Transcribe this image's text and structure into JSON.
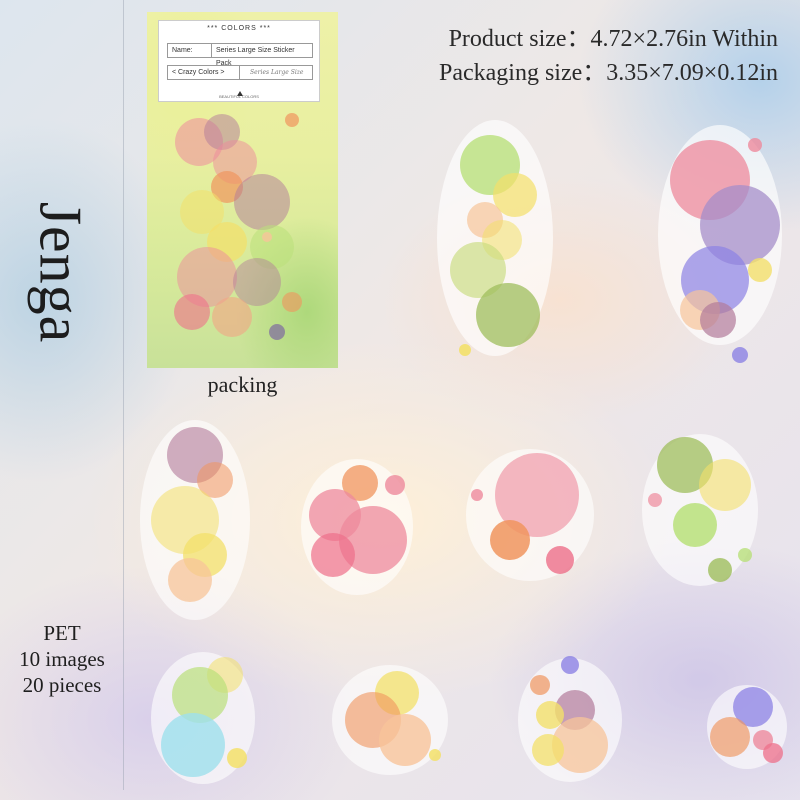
{
  "title": "Jenga",
  "sizes": {
    "product": "Product size：4.72×2.76in Within",
    "packaging": "Packaging size：3.35×7.09×0.12in"
  },
  "package": {
    "brand": "*** COLORS ***",
    "name_label": "Name:",
    "name_value": "Series Large Size Sticker Pack",
    "series_name": "< Crazy Colors >",
    "subtitle": "BEAUTIFUL COLORS"
  },
  "packing_caption": "packing",
  "specs": {
    "material": "PET",
    "images": "10 images",
    "pieces": "20 pieces"
  },
  "colors": {
    "pink": "#ee8a9c",
    "coral": "#f2a586",
    "yellow": "#f3e06a",
    "lime": "#b9e07a",
    "olive": "#9fbe5c",
    "purple": "#a68dc9",
    "violet": "#8c82e4",
    "orange": "#f0955e",
    "mauve": "#b27a9a",
    "cyan": "#9ee0ec",
    "peach": "#f7c49a"
  }
}
